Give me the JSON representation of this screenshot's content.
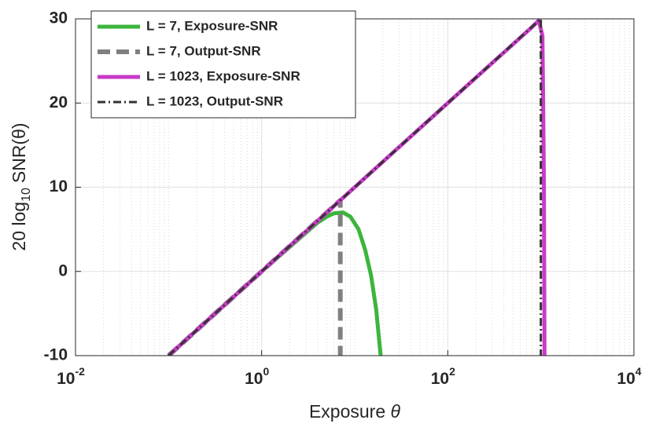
{
  "chart_data": {
    "type": "line",
    "xlabel": {
      "text": "Exposure",
      "symbol": "θ"
    },
    "ylabel": {
      "text": "20 log",
      "sub": "10",
      "rest": "SNR(θ)"
    },
    "xscale": "log",
    "grid": true,
    "minor_grid": true,
    "legend": "upper left",
    "xlim": [
      0.01,
      10000
    ],
    "ylim": [
      -10,
      30
    ],
    "xticks": [
      {
        "value": 0.01,
        "label": "10",
        "sup": "-2"
      },
      {
        "value": 1,
        "label": "10",
        "sup": "0"
      },
      {
        "value": 100,
        "label": "10",
        "sup": "2"
      },
      {
        "value": 10000,
        "label": "10",
        "sup": "4"
      }
    ],
    "yticks": [
      -10,
      0,
      10,
      20,
      30
    ],
    "series": [
      {
        "name": "L = 7, Exposure-SNR",
        "color": "#3cb53c",
        "style": "solid",
        "width": 5,
        "x": [
          0.1,
          1,
          3,
          4,
          5,
          6,
          7.5,
          9,
          11,
          13,
          15,
          17,
          19
        ],
        "values": [
          -10,
          0,
          4.6,
          5.8,
          6.5,
          6.9,
          7.0,
          6.5,
          5,
          2.5,
          -0.5,
          -4.5,
          -10
        ]
      },
      {
        "name": "L = 7, Output-SNR",
        "color": "#808080",
        "style": "dashed",
        "width": 6,
        "x": [
          0.1,
          7,
          7
        ],
        "values": [
          -10,
          8.45,
          -10
        ]
      },
      {
        "name": "L = 1023, Exposure-SNR",
        "color": "#c83cc8",
        "style": "solid",
        "width": 5,
        "x": [
          0.1,
          1,
          10,
          100,
          800,
          950,
          1040,
          1060,
          1080,
          1095
        ],
        "values": [
          -10,
          0,
          10,
          20,
          29,
          29.8,
          28,
          20,
          10,
          -10
        ]
      },
      {
        "name": "L = 1023, Output-SNR",
        "color": "#333333",
        "style": "dashdot",
        "width": 3,
        "x": [
          0.1,
          1000,
          1000
        ],
        "values": [
          -10,
          30,
          -10
        ]
      }
    ]
  }
}
